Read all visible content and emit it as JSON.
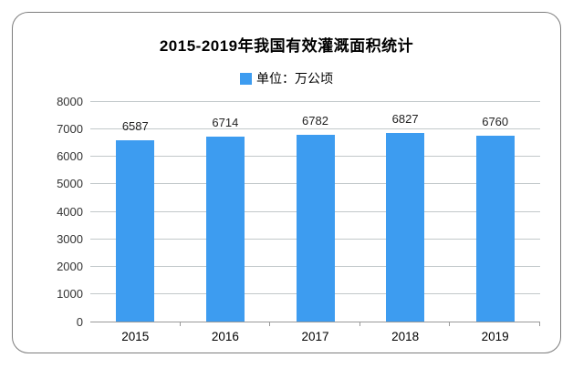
{
  "chart_data": {
    "type": "bar",
    "title": "2015-2019年我国有效灌溉面积统计",
    "legend_label": "单位：万公顷",
    "categories": [
      "2015",
      "2016",
      "2017",
      "2018",
      "2019"
    ],
    "values": [
      6587,
      6714,
      6782,
      6827,
      6760
    ],
    "ylim": [
      0,
      8000
    ],
    "ytick_step": 1000,
    "grid": true,
    "legend_position": "top-center",
    "colors": {
      "bar": "#3d9cf0",
      "gridline": "#c2c8ca",
      "axis_line": "#999999",
      "text": "#222222",
      "border": "#7d7d7d"
    }
  }
}
